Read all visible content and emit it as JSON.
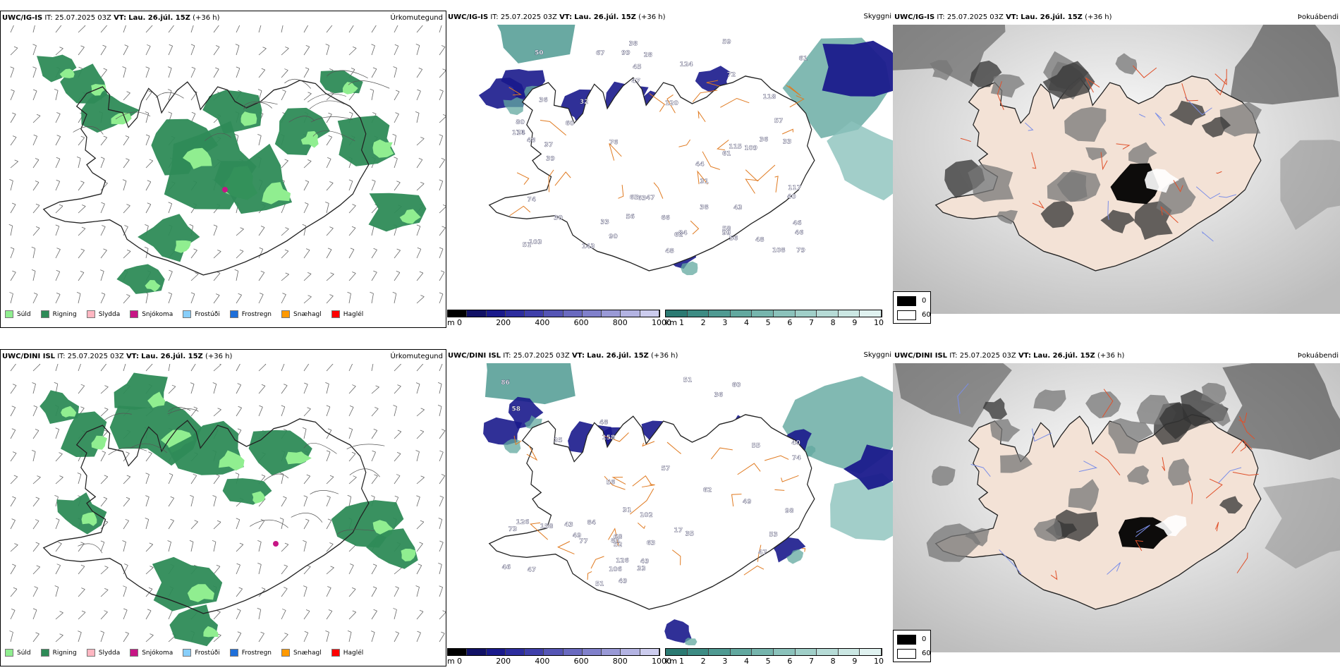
{
  "rows": [
    {
      "model": "UWC/IG-IS",
      "it_label": "IT:",
      "it_value": "25.07.2025 03Z",
      "vt_label": "VT:",
      "vt_value": "Lau. 26.júl. 15Z",
      "lead": "(+36 h)"
    },
    {
      "model": "UWC/DINI ISL",
      "it_label": "IT:",
      "it_value": "25.07.2025 03Z",
      "vt_label": "VT:",
      "vt_value": "Lau. 26.júl. 15Z",
      "lead": "(+36 h)"
    }
  ],
  "panels": {
    "precip_title": "Úrkomutegund",
    "vis_title": "Skyggni",
    "fog_title": "Þokuábendi"
  },
  "precip_legend": [
    {
      "label": "Súld",
      "color": "#90ee90"
    },
    {
      "label": "Rigning",
      "color": "#2e8b57"
    },
    {
      "label": "Slydda",
      "color": "#ffb6c1"
    },
    {
      "label": "Snjókoma",
      "color": "#c71585"
    },
    {
      "label": "Frostúði",
      "color": "#87cefa"
    },
    {
      "label": "Frostregn",
      "color": "#1e6fd9"
    },
    {
      "label": "Snæhagl",
      "color": "#ff9900"
    },
    {
      "label": "Haglél",
      "color": "#ff0000"
    }
  ],
  "cloud_base_scale": {
    "unit": "m",
    "ticks": [
      "0",
      "200",
      "400",
      "600",
      "800",
      "1000"
    ],
    "colors": [
      "#000000",
      "#111166",
      "#1a1a8c",
      "#2d2d9e",
      "#3f3faa",
      "#5555b5",
      "#6a6ac0",
      "#8080cb",
      "#9999d6",
      "#b3b3e2",
      "#ccccee"
    ]
  },
  "visibility_scale": {
    "unit": "km",
    "ticks": [
      "1",
      "2",
      "3",
      "4",
      "5",
      "6",
      "7",
      "8",
      "9",
      "10"
    ],
    "colors": [
      "#2b7a72",
      "#3d8c84",
      "#4f9a92",
      "#62a89f",
      "#76b5ad",
      "#8bc2bb",
      "#a0cfc8",
      "#b6dbd6",
      "#cbe7e3",
      "#e0f2f0"
    ]
  },
  "fog_legend": {
    "low": "0",
    "high": "60"
  },
  "cloud_labels": {
    "row1": [
      "143",
      "57",
      "56",
      "46",
      "61",
      "43",
      "56",
      "45",
      "47",
      "61",
      "76",
      "48",
      "79",
      "48",
      "51",
      "58",
      "30",
      "59",
      "124",
      "115",
      "90",
      "108",
      "118",
      "67",
      "46",
      "36",
      "40",
      "50",
      "114",
      "120",
      "99",
      "109",
      "28",
      "74",
      "38",
      "80",
      "62",
      "32",
      "44",
      "47",
      "31",
      "48",
      "39",
      "33",
      "103",
      "117",
      "99",
      "38",
      "37",
      "65",
      "66",
      "36",
      "33",
      "70",
      "60",
      "63",
      "84",
      "72"
    ],
    "row2": [
      "63",
      "49",
      "35",
      "86",
      "40",
      "51",
      "60",
      "47",
      "49",
      "58",
      "17",
      "68",
      "43",
      "36",
      "49",
      "51",
      "55",
      "47",
      "57",
      "77",
      "126",
      "158",
      "85",
      "126",
      "106",
      "102",
      "158",
      "98",
      "53",
      "62",
      "52",
      "74",
      "84",
      "73",
      "46",
      "56",
      "49",
      "31",
      "35",
      "48",
      "33"
    ]
  }
}
